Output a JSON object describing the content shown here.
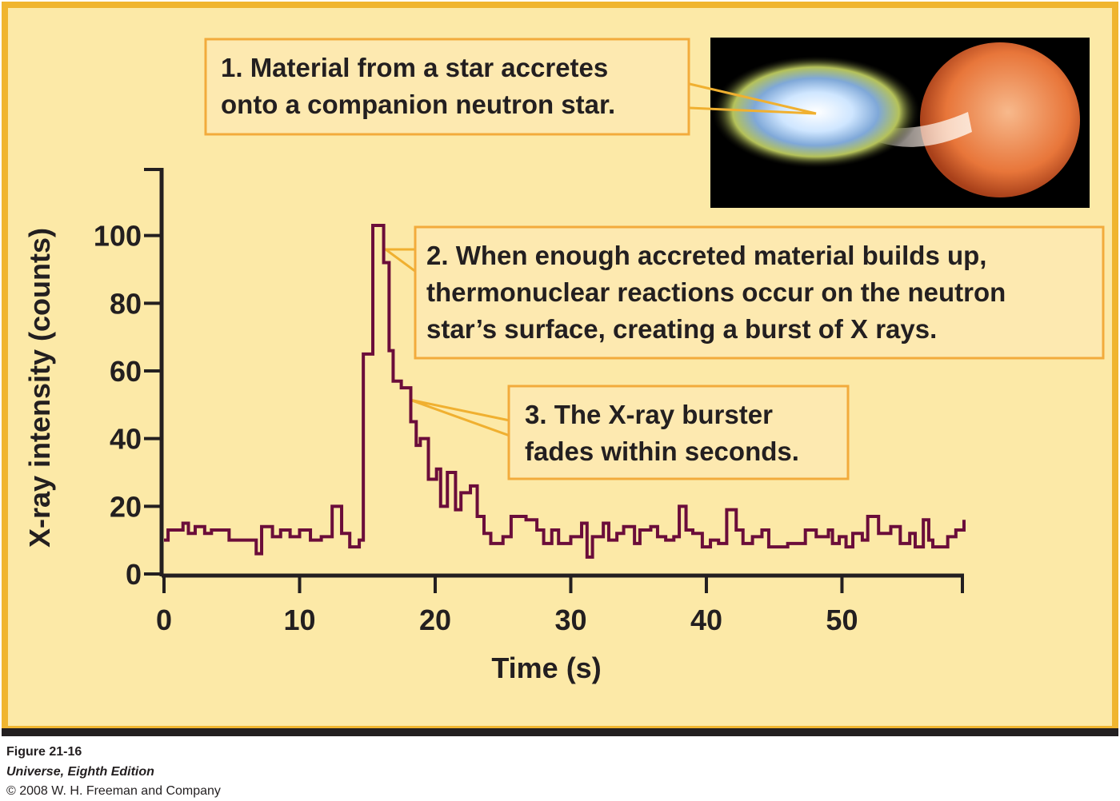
{
  "chart_data": {
    "type": "step",
    "xlabel": "Time (s)",
    "ylabel": "X-ray intensity (counts)",
    "xlim": [
      0,
      59
    ],
    "xticks": [
      0,
      10,
      20,
      30,
      40,
      50
    ],
    "ylim": [
      0,
      120
    ],
    "yticks": [
      0,
      20,
      40,
      60,
      80,
      100
    ],
    "color": "#6b0d3a",
    "x": [
      0,
      0.3,
      1.4,
      1.8,
      2.3,
      3,
      3.5,
      4.8,
      6.8,
      7.2,
      8,
      8.6,
      9.3,
      10,
      10.8,
      11.6,
      12.4,
      13.1,
      13.7,
      14.4,
      14.7,
      15.4,
      16.2,
      16.6,
      16.9,
      17.5,
      18.2,
      18.6,
      18.9,
      19.5,
      20.1,
      20.4,
      20.9,
      21.5,
      21.9,
      22.6,
      23.1,
      23.6,
      24.1,
      25,
      25.6,
      26.7,
      27.5,
      28,
      28.6,
      29.1,
      30,
      30.8,
      31.2,
      31.6,
      32.4,
      32.8,
      33.4,
      33.9,
      34.7,
      35.1,
      35.9,
      36.4,
      37,
      37.6,
      38,
      38.5,
      39,
      39.7,
      40.3,
      40.9,
      41.5,
      42.2,
      42.7,
      43.4,
      44.1,
      44.6,
      46,
      47.3,
      48.1,
      49,
      49.3,
      49.8,
      50.3,
      50.8,
      51.5,
      51.9,
      52.7,
      53.6,
      54.3,
      55,
      55.4,
      56,
      56.4,
      56.7,
      57.8,
      58.4,
      59
    ],
    "values": [
      10,
      13,
      15,
      12,
      14,
      12,
      13,
      10,
      6,
      14,
      11,
      13,
      11,
      13,
      10,
      11,
      20,
      12,
      8,
      10,
      65,
      103,
      92,
      66,
      57,
      55,
      45,
      38,
      40,
      28,
      31,
      20,
      30,
      19,
      24,
      26,
      17,
      12,
      9,
      11,
      17,
      16,
      13,
      9,
      13,
      9,
      11,
      15,
      5,
      11,
      15,
      10,
      12,
      14,
      9,
      13,
      14,
      11,
      10,
      11,
      20,
      13,
      12,
      8,
      10,
      9,
      19,
      13,
      9,
      11,
      13,
      8,
      9,
      13,
      11,
      13,
      9,
      11,
      8,
      12,
      10,
      17,
      12,
      14,
      9,
      12,
      8,
      16,
      10,
      8,
      11,
      13,
      16
    ],
    "annotations": [
      [
        "1. Material from a star accretes",
        "onto a companion neutron star."
      ],
      [
        "2. When enough accreted material builds up,",
        "thermonuclear reactions occur on the neutron",
        "star’s surface, creating a burst of X rays."
      ],
      [
        "3. The X-ray burster",
        "fades within seconds."
      ]
    ]
  },
  "caption": {
    "figure": "Figure 21-16",
    "book": "Universe, Eighth Edition",
    "copyright": "© 2008 W. H. Freeman and Company"
  }
}
